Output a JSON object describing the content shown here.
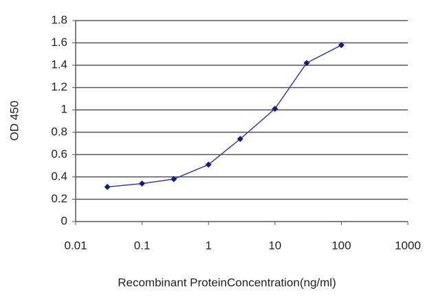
{
  "chart_data": {
    "type": "line",
    "xlabel": "Recombinant ProteinConcentration(ng/ml)",
    "ylabel": "OD 450",
    "x": [
      0.03,
      0.1,
      0.3,
      1,
      3,
      10,
      30,
      100
    ],
    "values": [
      0.31,
      0.34,
      0.38,
      0.51,
      0.74,
      1.01,
      1.42,
      1.58
    ],
    "color": "#3a3aa8",
    "marker_color": "#1a1a80",
    "xscale": "log",
    "xlim": [
      0.01,
      1000
    ],
    "xticks": [
      0.01,
      0.1,
      1,
      10,
      100,
      1000
    ],
    "ylim": [
      0,
      1.8
    ],
    "yticks": [
      0,
      0.2,
      0.4,
      0.6,
      0.8,
      1,
      1.2,
      1.4,
      1.6,
      1.8
    ],
    "grid": true
  }
}
